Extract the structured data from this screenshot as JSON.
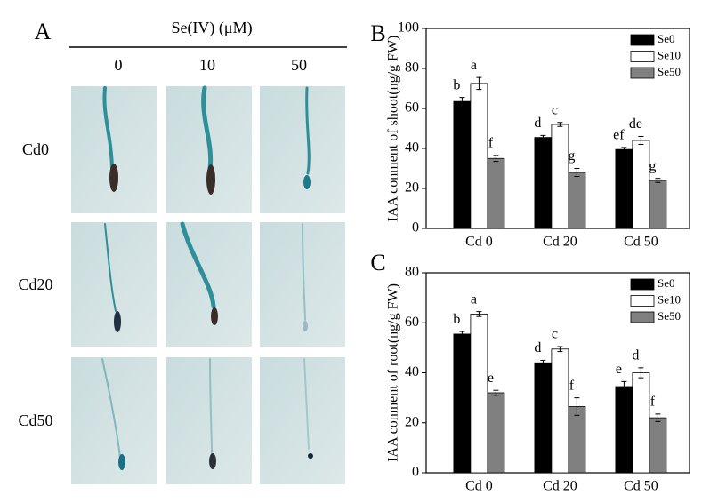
{
  "panel_a": {
    "label": "A",
    "title": "Se(IV) (μM)",
    "columns": [
      "0",
      "10",
      "50"
    ],
    "rows": [
      "Cd0",
      "Cd20",
      "Cd50"
    ]
  },
  "chart_data": [
    {
      "type": "bar",
      "panel_label": "B",
      "ylabel": "IAA conment of shoot(ng/g FW)",
      "categories": [
        "Cd 0",
        "Cd 20",
        "Cd 50"
      ],
      "series": [
        {
          "name": "Se0",
          "color": "#000000",
          "values": [
            63.5,
            45.5,
            39.5
          ],
          "errors": [
            2,
            1,
            1
          ],
          "letters": [
            "b",
            "d",
            "ef"
          ]
        },
        {
          "name": "Se10",
          "color": "#ffffff",
          "values": [
            72.5,
            52,
            44
          ],
          "errors": [
            3,
            1,
            2
          ],
          "letters": [
            "a",
            "c",
            "de"
          ]
        },
        {
          "name": "Se50",
          "color": "#808080",
          "values": [
            35,
            28,
            24
          ],
          "errors": [
            1.5,
            2,
            1
          ],
          "letters": [
            "f",
            "g",
            "g"
          ]
        }
      ],
      "ylim": [
        0,
        100
      ],
      "yticks": [
        0,
        20,
        40,
        60,
        80,
        100
      ],
      "legend": "upper right"
    },
    {
      "type": "bar",
      "panel_label": "C",
      "ylabel": "IAA conment of root(ng/g FW)",
      "categories": [
        "Cd 0",
        "Cd 20",
        "Cd 50"
      ],
      "series": [
        {
          "name": "Se0",
          "color": "#000000",
          "values": [
            55.5,
            44,
            34.5
          ],
          "errors": [
            1,
            1,
            2
          ],
          "letters": [
            "b",
            "d",
            "e"
          ]
        },
        {
          "name": "Se10",
          "color": "#ffffff",
          "values": [
            63.5,
            49.5,
            40
          ],
          "errors": [
            1,
            1,
            2
          ],
          "letters": [
            "a",
            "c",
            "d"
          ]
        },
        {
          "name": "Se50",
          "color": "#808080",
          "values": [
            32,
            26.5,
            22
          ],
          "errors": [
            1,
            3.5,
            1.5
          ],
          "letters": [
            "e",
            "f",
            "f"
          ]
        }
      ],
      "ylim": [
        0,
        80
      ],
      "yticks": [
        0,
        20,
        40,
        60,
        80
      ],
      "legend": "upper right"
    }
  ]
}
